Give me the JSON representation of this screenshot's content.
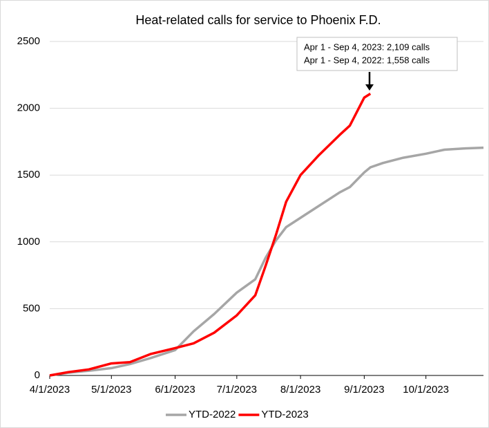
{
  "chart_data": {
    "type": "line",
    "title": "Heat-related calls for service to Phoenix F.D.",
    "x": [
      "4/1/2023",
      "4/10/2023",
      "4/20/2023",
      "5/1/2023",
      "5/10/2023",
      "5/20/2023",
      "6/1/2023",
      "6/10/2023",
      "6/20/2023",
      "7/1/2023",
      "7/10/2023",
      "7/15/2023",
      "7/20/2023",
      "7/25/2023",
      "8/1/2023",
      "8/10/2023",
      "8/20/2023",
      "8/25/2023",
      "9/1/2023",
      "9/4/2023",
      "9/10/2023",
      "9/20/2023",
      "10/1/2023",
      "10/10/2023",
      "10/20/2023",
      "10/29/2023"
    ],
    "series": [
      {
        "name": "YTD-2022",
        "color": "#a6a6a6",
        "values": [
          0,
          20,
          35,
          55,
          85,
          130,
          190,
          330,
          460,
          620,
          720,
          880,
          1010,
          1110,
          1180,
          1270,
          1370,
          1410,
          1520,
          1558,
          1590,
          1630,
          1660,
          1690,
          1700,
          1705
        ]
      },
      {
        "name": "YTD-2023",
        "color": "#ff0000",
        "values": [
          0,
          25,
          45,
          90,
          100,
          160,
          205,
          240,
          320,
          450,
          600,
          820,
          1050,
          1300,
          1500,
          1650,
          1800,
          1870,
          2080,
          2109,
          null,
          null,
          null,
          null,
          null,
          null
        ]
      }
    ],
    "xlim": [
      "4/1/2023",
      "10/29/2023"
    ],
    "xticks": [
      "4/1/2023",
      "5/1/2023",
      "6/1/2023",
      "7/1/2023",
      "8/1/2023",
      "9/1/2023",
      "10/1/2023"
    ],
    "ylim": [
      0,
      2500
    ],
    "yticks": [
      0,
      500,
      1000,
      1500,
      2000,
      2500
    ],
    "grid": true,
    "annotations": [
      "Apr 1 - Sep 4, 2023: 2,109 calls",
      "Apr 1 - Sep 4, 2022: 1,558 calls"
    ]
  }
}
